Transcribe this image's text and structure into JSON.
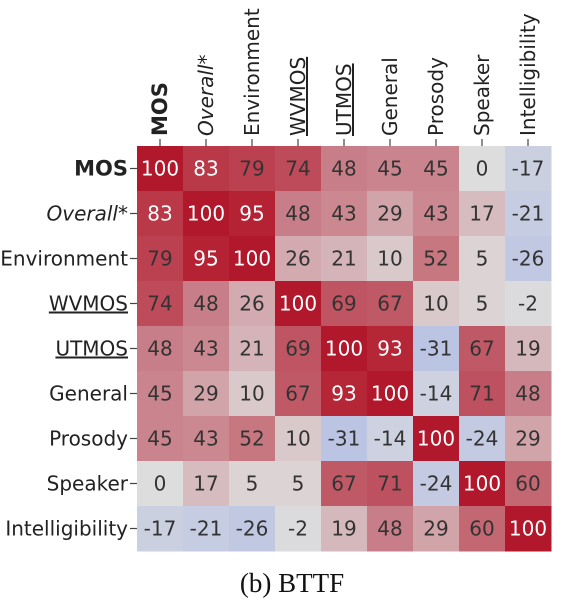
{
  "chart_data": {
    "type": "heatmap",
    "rows": [
      "MOS",
      "Overall*",
      "Environment",
      "WVMOS",
      "UTMOS",
      "General",
      "Prosody",
      "Speaker",
      "Intelligibility"
    ],
    "columns": [
      "MOS",
      "Overall*",
      "Environment",
      "WVMOS",
      "UTMOS",
      "General",
      "Prosody",
      "Speaker",
      "Intelligibility"
    ],
    "values": [
      [
        100,
        83,
        79,
        74,
        48,
        45,
        45,
        0,
        -17
      ],
      [
        83,
        100,
        95,
        48,
        43,
        29,
        43,
        17,
        -21
      ],
      [
        79,
        95,
        100,
        26,
        21,
        10,
        52,
        5,
        -26
      ],
      [
        74,
        48,
        26,
        100,
        69,
        67,
        10,
        5,
        -2
      ],
      [
        48,
        43,
        21,
        69,
        100,
        93,
        -31,
        67,
        19
      ],
      [
        45,
        29,
        10,
        67,
        93,
        100,
        -14,
        71,
        48
      ],
      [
        45,
        43,
        52,
        10,
        -31,
        -14,
        100,
        -24,
        29
      ],
      [
        0,
        17,
        5,
        5,
        67,
        71,
        -24,
        100,
        60
      ],
      [
        -17,
        -21,
        -26,
        -2,
        19,
        48,
        29,
        60,
        100
      ]
    ],
    "label_styles": [
      "bold",
      "italic",
      "normal",
      "underline",
      "underline",
      "normal",
      "normal",
      "normal",
      "normal"
    ],
    "colormap": {
      "negative": "#6f8ef0",
      "neutral": "#dddddd",
      "positive": "#b2182b"
    },
    "vmin": -100,
    "vmax": 100
  },
  "caption": "(b) BTTF"
}
